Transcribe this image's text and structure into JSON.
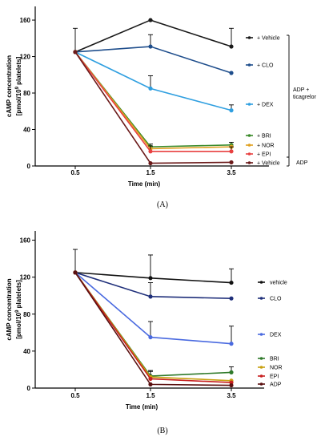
{
  "chart_data": [
    {
      "type": "line",
      "panel_label": "(A)",
      "xlabel": "Time (min)",
      "ylabel_line1": "cAMP concentration",
      "ylabel_line2_prefix": "[pmol/10",
      "ylabel_line2_sup": "9",
      "ylabel_line2_suffix": " platelets]",
      "x": [
        0.5,
        1.5,
        3.5
      ],
      "x_tick_labels": [
        "0.5",
        "1.5",
        "3.5"
      ],
      "ylim": [
        0,
        175
      ],
      "y_ticks": [
        0,
        40,
        80,
        120,
        160
      ],
      "legend_placement": "right",
      "series": [
        {
          "name": "+ Vehicle",
          "color": "#1a1a1a",
          "values": [
            125,
            160,
            131
          ],
          "errors": [
            26,
            0,
            20
          ]
        },
        {
          "name": "+ CLO",
          "color": "#1f4e8c",
          "values": [
            125,
            131,
            102
          ],
          "errors": [
            0,
            13,
            0
          ]
        },
        {
          "name": "+ DEX",
          "color": "#2f9fe0",
          "values": [
            125,
            85,
            61
          ],
          "errors": [
            0,
            14,
            6
          ]
        },
        {
          "name": "+ BRI",
          "color": "#3a8a2a",
          "values": [
            125,
            21,
            23
          ],
          "errors": [
            0,
            3,
            3
          ]
        },
        {
          "name": "+ NOR",
          "color": "#e0a020",
          "values": [
            125,
            19,
            21
          ],
          "errors": [
            0,
            0,
            0
          ]
        },
        {
          "name": "+ EPI",
          "color": "#e84040",
          "values": [
            125,
            16,
            16
          ],
          "errors": [
            0,
            6,
            5
          ]
        },
        {
          "name": "+ Vehicle",
          "color": "#6b1a1a",
          "values": [
            125,
            3,
            4
          ],
          "errors": [
            0,
            0,
            0
          ]
        }
      ],
      "brackets": [
        {
          "label_line1": "ADP +",
          "label_line2": "ticagrelor"
        },
        {
          "label_line1": "ADP",
          "label_line2": ""
        }
      ]
    },
    {
      "type": "line",
      "panel_label": "(B)",
      "xlabel": "Time (min)",
      "ylabel_line1": "cAMP concentration",
      "ylabel_line2_prefix": "[pmol/10",
      "ylabel_line2_sup": "9",
      "ylabel_line2_suffix": " platelets]",
      "x": [
        0.5,
        1.5,
        3.5
      ],
      "x_tick_labels": [
        "0.5",
        "1.5",
        "3.5"
      ],
      "ylim": [
        0,
        170
      ],
      "y_ticks": [
        0,
        40,
        80,
        120,
        160
      ],
      "legend_placement": "right",
      "series": [
        {
          "name": "vehicle",
          "color": "#111111",
          "values": [
            125,
            119,
            114
          ],
          "errors": [
            25,
            25,
            15
          ]
        },
        {
          "name": "CLO",
          "color": "#1f2f7a",
          "values": [
            125,
            99,
            97
          ],
          "errors": [
            0,
            15,
            0
          ]
        },
        {
          "name": "DEX",
          "color": "#4a6ae0",
          "values": [
            125,
            55,
            48
          ],
          "errors": [
            0,
            17,
            19
          ]
        },
        {
          "name": "BRI",
          "color": "#2f7a2a",
          "values": [
            125,
            13,
            17
          ],
          "errors": [
            0,
            6,
            6
          ]
        },
        {
          "name": "NOR",
          "color": "#c8a010",
          "values": [
            125,
            12,
            8
          ],
          "errors": [
            0,
            6,
            0
          ]
        },
        {
          "name": "EPI",
          "color": "#c82020",
          "values": [
            125,
            10,
            6
          ],
          "errors": [
            0,
            0,
            0
          ]
        },
        {
          "name": "ADP",
          "color": "#5a1010",
          "values": [
            125,
            4,
            3
          ],
          "errors": [
            0,
            0,
            0
          ]
        }
      ]
    }
  ]
}
